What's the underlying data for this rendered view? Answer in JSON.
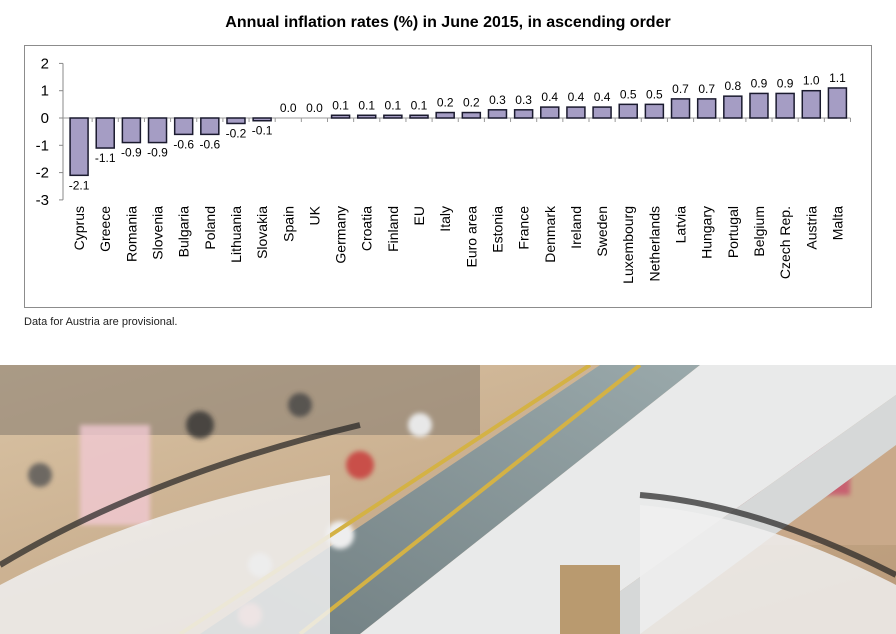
{
  "chart_data": {
    "type": "bar",
    "title": "Annual inflation rates (%) in June 2015, in ascending order",
    "xlabel": "",
    "ylabel": "",
    "ylim": [
      -3,
      2
    ],
    "yticks": [
      2,
      1,
      0,
      -1,
      -2,
      -3
    ],
    "grid": false,
    "legend": null,
    "bar_color": "#a59dc4",
    "bar_edge_color": "#1a1a2e",
    "categories": [
      "Cyprus",
      "Greece",
      "Romania",
      "Slovenia",
      "Bulgaria",
      "Poland",
      "Lithuania",
      "Slovakia",
      "Spain",
      "UK",
      "Germany",
      "Croatia",
      "Finland",
      "EU",
      "Italy",
      "Euro area",
      "Estonia",
      "France",
      "Denmark",
      "Ireland",
      "Sweden",
      "Luxembourg",
      "Netherlands",
      "Latvia",
      "Hungary",
      "Portugal",
      "Belgium",
      "Czech Rep.",
      "Austria",
      "Malta"
    ],
    "values": [
      -2.1,
      -1.1,
      -0.9,
      -0.9,
      -0.6,
      -0.6,
      -0.2,
      -0.1,
      0.0,
      0.0,
      0.1,
      0.1,
      0.1,
      0.1,
      0.2,
      0.2,
      0.3,
      0.3,
      0.4,
      0.4,
      0.4,
      0.5,
      0.5,
      0.7,
      0.7,
      0.8,
      0.9,
      0.9,
      1.0,
      1.1
    ],
    "labels": [
      "-2.1",
      "-1.1",
      "-0.9",
      "-0.9",
      "-0.6",
      "-0.6",
      "-0.2",
      "-0.1",
      "0.0",
      "0.0",
      "0.1",
      "0.1",
      "0.1",
      "0.1",
      "0.2",
      "0.2",
      "0.3",
      "0.3",
      "0.4",
      "0.4",
      "0.4",
      "0.5",
      "0.5",
      "0.7",
      "0.7",
      "0.8",
      "0.9",
      "0.9",
      "1.0",
      "1.1"
    ]
  },
  "footnote": "Data for Austria are provisional.",
  "photo": {
    "description": "Blurred shoppers on escalators in a shopping mall"
  }
}
